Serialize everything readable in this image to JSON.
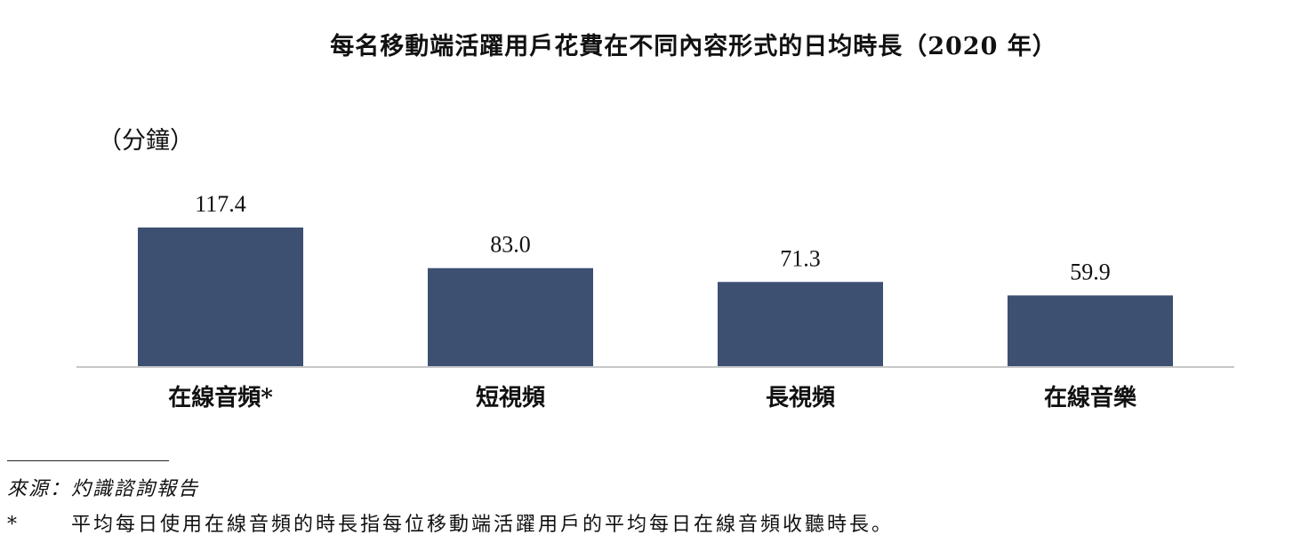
{
  "chart_data": {
    "type": "bar",
    "title": "每名移動端活躍用戶花費在不同內容形式的日均時長（2020 年）",
    "ylabel": "（分鐘）",
    "categories": [
      "在線音頻*",
      "短視頻",
      "長視頻",
      "在線音樂"
    ],
    "values": [
      117.4,
      83.0,
      71.3,
      59.9
    ],
    "value_labels": [
      "117.4",
      "83.0",
      "71.3",
      "59.9"
    ],
    "ylim": [
      0,
      117.4
    ],
    "grid": false,
    "legend": "none",
    "bar_color": "#3d5071",
    "axis_color": "#c8c8c8"
  },
  "footnotes": {
    "source": "來源：灼識諮詢報告",
    "note_mark": "*",
    "note_text": "平均每日使用在線音頻的時長指每位移動端活躍用戶的平均每日在線音頻收聽時長。"
  }
}
